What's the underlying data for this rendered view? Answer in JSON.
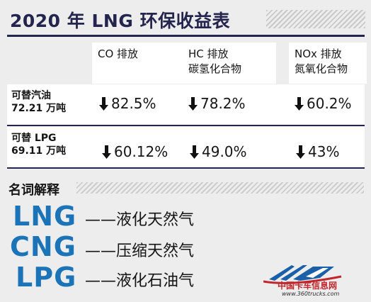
{
  "title": "2020 年 LNG 环保收益表",
  "headers": {
    "co": {
      "line1": "CO 排放",
      "line2": ""
    },
    "hc": {
      "line1": "HC 排放",
      "line2": "碳氢化合物"
    },
    "nox": {
      "line1": "NOx 排放",
      "line2": "氮氧化合物"
    }
  },
  "rows": [
    {
      "label1": "可替汽油",
      "label2": "72.21 万吨",
      "co": "82.5%",
      "hc": "78.2%",
      "nox": "60.2%"
    },
    {
      "label1": "可替 LPG",
      "label2": "69.11 万吨",
      "co": "60.12%",
      "hc": "49.0%",
      "nox": "43%"
    }
  ],
  "arrow_icon": "down-arrow-icon",
  "section_title": "名词解释",
  "terms": [
    {
      "abbr": "LNG",
      "desc": "——液化天然气"
    },
    {
      "abbr": "CNG",
      "desc": "——压缩天然气"
    },
    {
      "abbr": "LPG",
      "desc": "——液化石油气"
    }
  ],
  "watermark": {
    "name": "中国卡车信息网",
    "url": "www.360trucks.com"
  },
  "colors": {
    "title": "#23254d",
    "term": "#1b73b8",
    "watermark": "#c0272d"
  }
}
